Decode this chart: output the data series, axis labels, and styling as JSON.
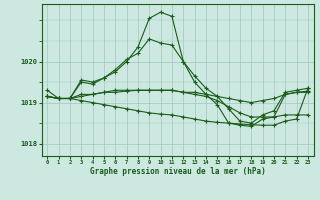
{
  "bg_color": "#cce8e0",
  "grid_color_major": "#a0c8c0",
  "line_color": "#1a5c1a",
  "title": "Graphe pression niveau de la mer (hPa)",
  "yticks": [
    1018,
    1019,
    1020
  ],
  "ylim": [
    1017.7,
    1021.4
  ],
  "xlim": [
    -0.5,
    23.5
  ],
  "series": [
    {
      "x": [
        0,
        1,
        2,
        3,
        4,
        5,
        6,
        7,
        8,
        9,
        10,
        11,
        12,
        13,
        14,
        15,
        16,
        17,
        18,
        19,
        20,
        21,
        22,
        23
      ],
      "y": [
        1019.15,
        1019.1,
        1019.1,
        1019.5,
        1019.45,
        1019.6,
        1019.75,
        1020.0,
        1020.35,
        1021.05,
        1021.2,
        1021.1,
        1020.0,
        1019.65,
        1019.35,
        1019.15,
        1018.85,
        1018.55,
        1018.5,
        1018.7,
        1018.8,
        1019.25,
        1019.3,
        1019.35
      ]
    },
    {
      "x": [
        0,
        1,
        2,
        3,
        4,
        5,
        6,
        7,
        8,
        9,
        10,
        11,
        12,
        13,
        14,
        15,
        16,
        17,
        18,
        19,
        20,
        21,
        22,
        23
      ],
      "y": [
        1019.15,
        1019.1,
        1019.1,
        1019.15,
        1019.2,
        1019.25,
        1019.3,
        1019.3,
        1019.3,
        1019.3,
        1019.3,
        1019.3,
        1019.25,
        1019.25,
        1019.2,
        1019.15,
        1019.1,
        1019.05,
        1019.0,
        1019.05,
        1019.1,
        1019.2,
        1019.25,
        1019.25
      ]
    },
    {
      "x": [
        0,
        1,
        2,
        3,
        4,
        5,
        6,
        7,
        8,
        9,
        10,
        11,
        12,
        13,
        14,
        15,
        16,
        17,
        18,
        19,
        20,
        21,
        22,
        23
      ],
      "y": [
        1019.15,
        1019.1,
        1019.1,
        1019.05,
        1019.0,
        1018.95,
        1018.9,
        1018.85,
        1018.8,
        1018.75,
        1018.72,
        1018.7,
        1018.65,
        1018.6,
        1018.55,
        1018.52,
        1018.5,
        1018.48,
        1018.46,
        1018.45,
        1018.45,
        1018.55,
        1018.6,
        1019.35
      ]
    },
    {
      "x": [
        0,
        1,
        2,
        3,
        4,
        5,
        6,
        7,
        8,
        9,
        10,
        11,
        12,
        13,
        14,
        15,
        16,
        17,
        18,
        19,
        20,
        21,
        22,
        23
      ],
      "y": [
        1019.15,
        1019.1,
        1019.1,
        1019.2,
        1019.2,
        1019.25,
        1019.25,
        1019.28,
        1019.3,
        1019.3,
        1019.3,
        1019.3,
        1019.25,
        1019.2,
        1019.15,
        1019.05,
        1018.9,
        1018.75,
        1018.65,
        1018.65,
        1018.65,
        1018.7,
        1018.7,
        1018.7
      ]
    },
    {
      "x": [
        0,
        1,
        2,
        3,
        4,
        5,
        6,
        7,
        8,
        9,
        10,
        11,
        12,
        13,
        14,
        15,
        16,
        17,
        18,
        19,
        20,
        21,
        22,
        23
      ],
      "y": [
        1019.3,
        1019.1,
        1019.1,
        1019.55,
        1019.5,
        1019.6,
        1019.8,
        1020.05,
        1020.2,
        1020.55,
        1020.45,
        1020.4,
        1020.0,
        1019.5,
        1019.2,
        1018.95,
        1018.5,
        1018.45,
        1018.42,
        1018.6,
        1018.65,
        1019.2,
        1019.25,
        1019.28
      ]
    }
  ]
}
